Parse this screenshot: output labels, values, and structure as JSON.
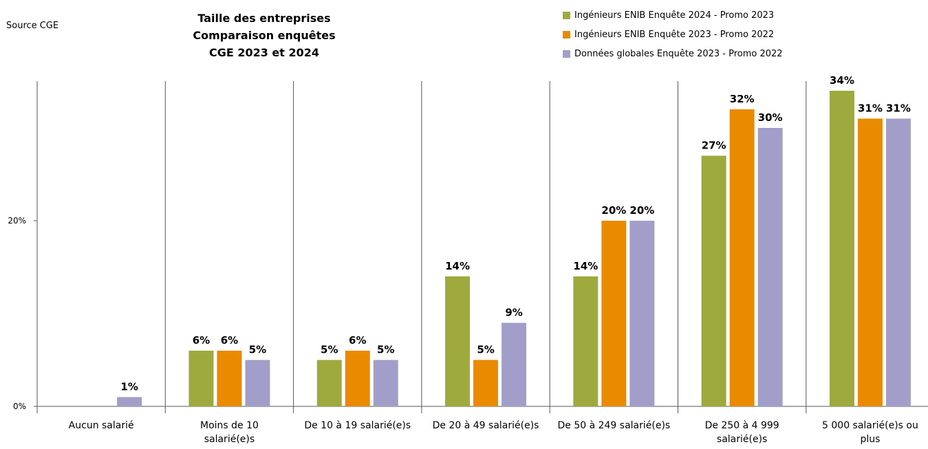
{
  "source_label": "Source CGE",
  "title_lines": [
    "Taille des entreprises",
    "Comparaison enquêtes",
    "CGE 2023 et 2024"
  ],
  "colors": {
    "series1": "#9eaa3e",
    "series2": "#ea8a00",
    "series3": "#a19fc9"
  },
  "legend": [
    {
      "label": "Ingénieurs ENIB Enquête 2024 - Promo 2023",
      "color": "#9eaa3e"
    },
    {
      "label": "Ingénieurs ENIB Enquête 2023 - Promo 2022",
      "color": "#ea8a00"
    },
    {
      "label": "Données globales Enquête 2023  - Promo 2022",
      "color": "#a19fc9"
    }
  ],
  "chart_data": {
    "type": "bar",
    "title": "Taille des entreprises Comparaison enquêtes CGE 2023 et 2024",
    "categories": [
      [
        "Aucun salarié"
      ],
      [
        "Moins de 10",
        "salarié(e)s"
      ],
      [
        "De 10 à 19 salarié(e)s"
      ],
      [
        "De 20 à 49 salarié(e)s"
      ],
      [
        "De 50 à 249 salarié(e)s"
      ],
      [
        "De 250 à 4 999",
        "salarié(e)s"
      ],
      [
        "5 000 salarié(e)s ou",
        "plus"
      ]
    ],
    "series": [
      {
        "name": "Ingénieurs ENIB Enquête 2024 - Promo 2023",
        "values": [
          0,
          6,
          5,
          14,
          14,
          27,
          34
        ]
      },
      {
        "name": "Ingénieurs ENIB Enquête 2023 - Promo 2022",
        "values": [
          0,
          6,
          6,
          5,
          20,
          32,
          31
        ]
      },
      {
        "name": "Données globales Enquête 2023  - Promo 2022",
        "values": [
          1,
          5,
          5,
          9,
          20,
          30,
          31
        ]
      }
    ],
    "data_labels": [
      [
        "",
        "6%",
        "5%",
        "14%",
        "14%",
        "27%",
        "34%"
      ],
      [
        "",
        "6%",
        "6%",
        "5%",
        "20%",
        "32%",
        "31%"
      ],
      [
        "1%",
        "5%",
        "5%",
        "9%",
        "20%",
        "30%",
        "31%"
      ]
    ],
    "yticks": [
      "0%",
      "20%"
    ],
    "ytick_values": [
      0,
      20
    ],
    "ylim": [
      0,
      35
    ],
    "grid": "vertical category separators",
    "legend_position": "top-right"
  }
}
